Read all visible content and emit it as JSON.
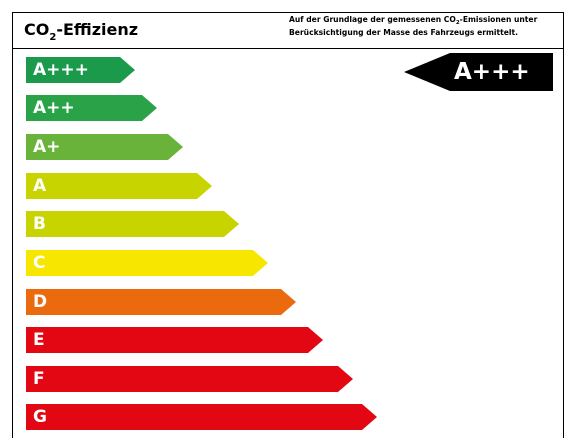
{
  "header": {
    "title_prefix": "CO",
    "title_subscript": "2",
    "title_suffix": "-Effizienz",
    "note_line1_prefix": "Auf der Grundlage der gemessenen CO",
    "note_line1_subscript": "2",
    "note_line1_suffix": "-Emissionen unter",
    "note_line2": "Berücksichtigung der Masse des Fahrzeugs ermittelt."
  },
  "classes": [
    {
      "label": "A+++",
      "color": "#1a9a4a"
    },
    {
      "label": "A++",
      "color": "#2aa348"
    },
    {
      "label": "A+",
      "color": "#6ab33a"
    },
    {
      "label": "A",
      "color": "#c8d400"
    },
    {
      "label": "B",
      "color": "#c8d400"
    },
    {
      "label": "C",
      "color": "#f7e600"
    },
    {
      "label": "D",
      "color": "#ec6a0e"
    },
    {
      "label": "E",
      "color": "#e30613"
    },
    {
      "label": "F",
      "color": "#e30613"
    },
    {
      "label": "G",
      "color": "#e30613"
    }
  ],
  "rating": {
    "label": "A+++",
    "color": "#000000"
  }
}
